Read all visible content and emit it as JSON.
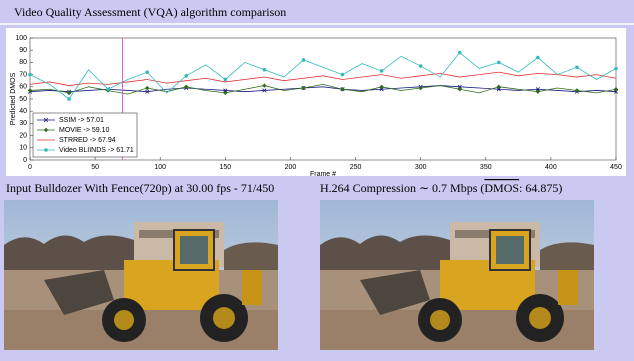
{
  "title": "Video Quality Assessment (VQA) algorithm comparison",
  "chart_data": {
    "type": "line",
    "xlabel": "Frame #",
    "ylabel": "Predicted DMOS",
    "x": [
      0,
      15,
      30,
      45,
      60,
      75,
      90,
      105,
      120,
      135,
      150,
      165,
      180,
      195,
      210,
      225,
      240,
      255,
      270,
      285,
      300,
      315,
      330,
      345,
      360,
      375,
      390,
      405,
      420,
      435,
      450
    ],
    "xlim": [
      0,
      450
    ],
    "xticks": [
      0,
      50,
      100,
      150,
      200,
      250,
      300,
      350,
      400,
      450
    ],
    "ylim": [
      0,
      100
    ],
    "yticks": [
      0,
      10,
      20,
      30,
      40,
      50,
      60,
      70,
      80,
      90,
      100
    ],
    "cursor": 71,
    "cursor_color": "#e040c0",
    "legend": "lower-left",
    "series": [
      {
        "name": "SSIM -> 57.01",
        "color": "#1a1a80",
        "marker": "x",
        "values": [
          56,
          57,
          56,
          57,
          58,
          57,
          56,
          58,
          59,
          58,
          57,
          56,
          57,
          58,
          59,
          60,
          58,
          57,
          58,
          59,
          60,
          61,
          60,
          59,
          58,
          57,
          58,
          57,
          56,
          57,
          56
        ]
      },
      {
        "name": "MOVIE -> 59.10",
        "color": "#2d6e1e",
        "marker": "diamond",
        "values": [
          57,
          58,
          55,
          60,
          57,
          54,
          59,
          56,
          60,
          57,
          55,
          58,
          61,
          57,
          59,
          62,
          58,
          56,
          60,
          57,
          59,
          61,
          58,
          55,
          60,
          58,
          56,
          59,
          57,
          55,
          58
        ]
      },
      {
        "name": "STRRED -> 67.94",
        "color": "#e03030",
        "marker": "none",
        "values": [
          62,
          64,
          61,
          63,
          62,
          64,
          66,
          63,
          65,
          67,
          64,
          66,
          68,
          65,
          67,
          69,
          66,
          68,
          70,
          67,
          69,
          71,
          68,
          70,
          72,
          69,
          71,
          70,
          68,
          70,
          67
        ]
      },
      {
        "name": "Video BLIINDS -> 61.71",
        "color": "#33bbbb",
        "marker": "circle",
        "values": [
          70,
          62,
          50,
          74,
          58,
          66,
          72,
          55,
          69,
          78,
          66,
          80,
          74,
          68,
          82,
          76,
          70,
          79,
          73,
          85,
          77,
          68,
          88,
          75,
          80,
          72,
          84,
          70,
          76,
          66,
          75
        ]
      }
    ]
  },
  "panels": [
    {
      "caption": "Input Bulldozer With Fence(720p) at 30.00 fps - 71/450"
    },
    {
      "caption_prefix": "H.264 Compression ∼ 0.7 Mbps (",
      "caption_metric": "DMOS",
      "caption_suffix": ": 64.875)"
    }
  ]
}
